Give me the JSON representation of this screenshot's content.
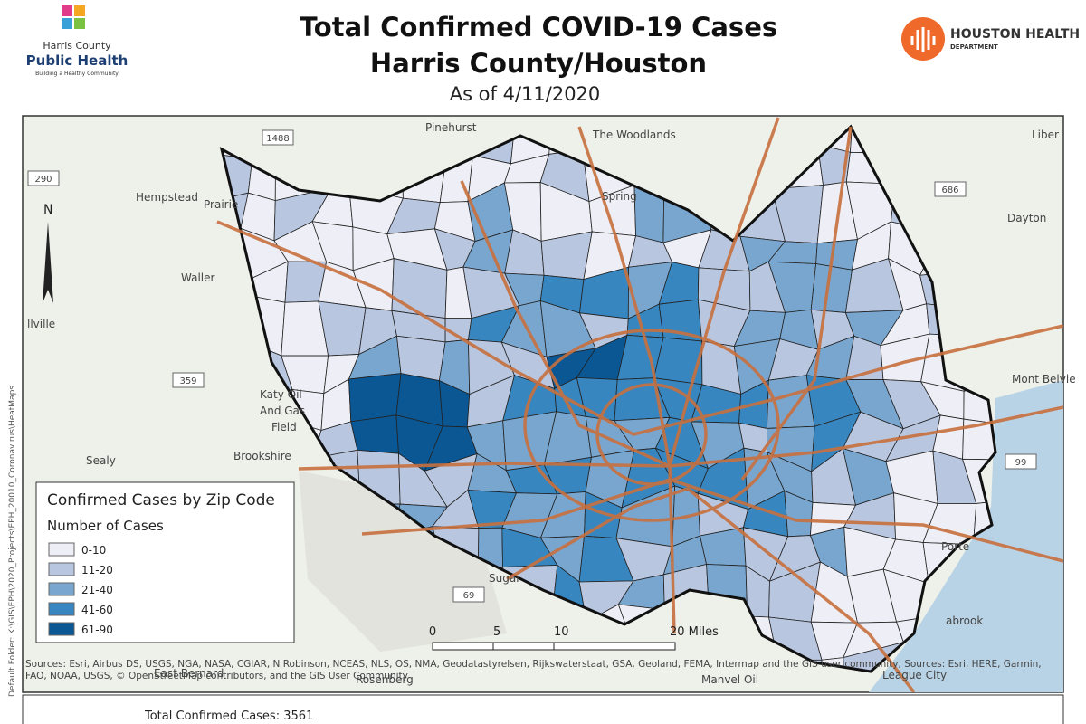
{
  "header": {
    "title_line1": "Total Confirmed COVID-19 Cases",
    "title_line2": "Harris County/Houston",
    "date": "As of 4/11/2020",
    "left_logo": {
      "line1": "Harris County",
      "line2": "Public Health",
      "tagline": "Building a Healthy Community"
    },
    "right_logo": {
      "line1": "HOUSTON HEALTH",
      "line2": "DEPARTMENT"
    }
  },
  "map": {
    "places": [
      "Pinehurst",
      "The Woodlands",
      "Spring",
      "Hempstead",
      "Prairie",
      "Waller",
      "Katy Oil",
      "And Gas",
      "Field",
      "Brookshire",
      "Sealy",
      "Dayton",
      "Liber",
      "Mont Belvie",
      "Rosenberg",
      "East Bernard",
      "Manvel Oil",
      "League City",
      "Porte",
      "abrook",
      "Sugar",
      "llville"
    ],
    "shields": [
      "1488",
      "290",
      "686",
      "359",
      "99",
      "69"
    ],
    "north": "N",
    "scale": [
      "0",
      "5",
      "10",
      "20 Miles"
    ],
    "attribution": "Sources: Esri, Airbus DS, USGS, NGA, NASA, CGIAR, N Robinson, NCEAS, NLS, OS, NMA, Geodatastyrelsen, Rijkswaterstaat, GSA, Geoland, FEMA, Intermap and the GIS user community, Sources: Esri, HERE, Garmin, FAO, NOAA, USGS, © OpenStreetMap contributors, and the GIS User Community",
    "folder": "Default Folder: K:\\GIS\\EPH\\2020_Projects\\EPH_20010_Coronavirus\\HeatMaps"
  },
  "legend": {
    "title": "Confirmed Cases by Zip Code",
    "subtitle": "Number of Cases",
    "classes": [
      {
        "label": "0-10",
        "color": "#eeeef6"
      },
      {
        "label": "11-20",
        "color": "#b8c6e0"
      },
      {
        "label": "21-40",
        "color": "#78a6cf"
      },
      {
        "label": "41-60",
        "color": "#3786bf"
      },
      {
        "label": "61-90",
        "color": "#0a5794"
      }
    ]
  },
  "footer": {
    "label": "Total Confirmed Cases:",
    "value": 3561
  }
}
